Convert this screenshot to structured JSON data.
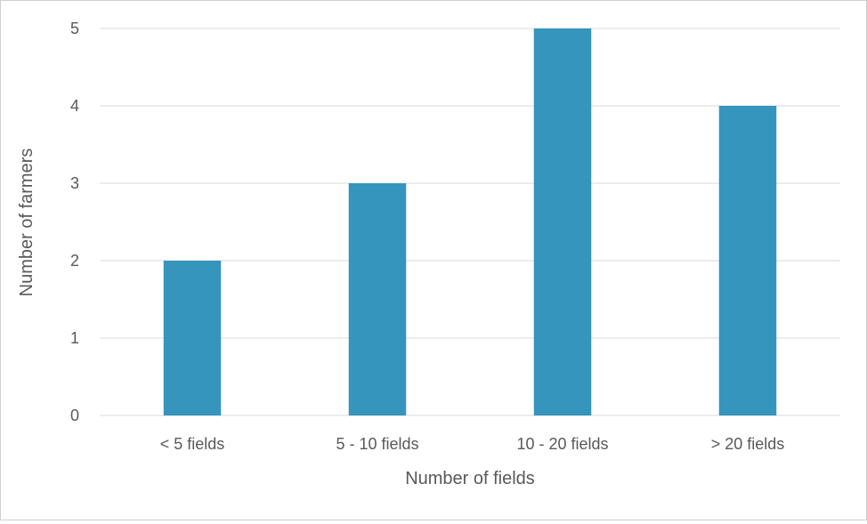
{
  "chart_data": {
    "type": "bar",
    "title": "",
    "xlabel": "Number of fields",
    "ylabel": "Number of farmers",
    "categories": [
      "< 5 fields",
      "5 - 10 fields",
      "10 - 20 fields",
      "> 20 fields"
    ],
    "values": [
      2,
      3,
      5,
      4
    ],
    "ylim": [
      0,
      5
    ],
    "yticks": [
      "0",
      "1",
      "2",
      "3",
      "4",
      "5"
    ],
    "grid": true,
    "legend": "none",
    "colors": {
      "bar": "#3595BD",
      "grid": "#d9d9d9",
      "text": "#595959"
    }
  }
}
